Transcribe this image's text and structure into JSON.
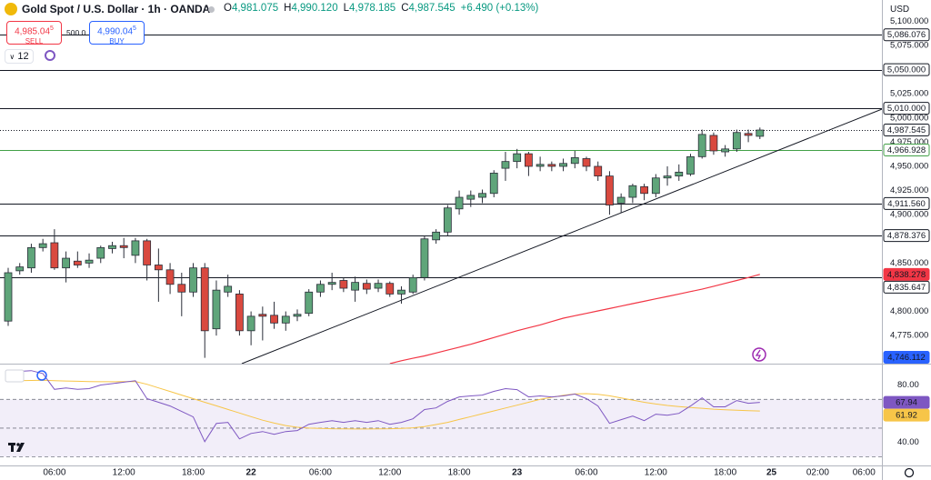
{
  "header": {
    "symbol": "Gold Spot / U.S. Dollar · 1h · OANDA",
    "ohlc": [
      {
        "letter": "O",
        "value": "4,981.075"
      },
      {
        "letter": "H",
        "value": "4,990.120"
      },
      {
        "letter": "L",
        "value": "4,978.185"
      },
      {
        "letter": "C",
        "value": "4,987.545"
      }
    ],
    "change": "+6.490 (+0.13%)",
    "sell": {
      "price": "4,985.04",
      "sup": "5",
      "label": "SELL"
    },
    "spread": "500.0",
    "buy": {
      "price": "4,990.04",
      "sup": "5",
      "label": "BUY"
    },
    "interval": "12",
    "currency": "USD"
  },
  "chart_data": [
    {
      "type": "candlestick",
      "categories": [
        null,
        null,
        null,
        null,
        "06:00",
        null,
        null,
        null,
        null,
        null,
        "12:00",
        null,
        null,
        null,
        null,
        null,
        "18:00",
        null,
        null,
        null,
        null,
        "22",
        null,
        null,
        null,
        null,
        null,
        "06:00",
        null,
        null,
        null,
        null,
        null,
        "12:00",
        null,
        null,
        null,
        null,
        null,
        "18:00",
        null,
        null,
        null,
        null,
        "23",
        null,
        null,
        null,
        null,
        null,
        "06:00",
        null,
        null,
        null,
        null,
        null,
        "12:00",
        null,
        null,
        null,
        null,
        null,
        "18:00",
        null,
        null,
        null,
        "25",
        null,
        null,
        null,
        "02:00",
        null,
        null,
        null,
        "06:00",
        null
      ],
      "open": [
        4790,
        4842,
        4845,
        4866,
        4871,
        4845,
        4852,
        4850,
        4855,
        4865,
        4868,
        4858,
        4873,
        4848,
        4843,
        4828,
        4820,
        4845,
        4782,
        4820,
        4818,
        4780,
        4797,
        4796,
        4788,
        4795,
        4798,
        4820,
        4828,
        4832,
        4822,
        4829,
        4824,
        4829,
        4818,
        4820,
        4835,
        4874,
        4882,
        4906,
        4916,
        4918,
        4922,
        4948,
        4955,
        4963,
        4950,
        4952,
        4950,
        4953,
        4958,
        4950,
        4940,
        4912,
        4918,
        4929,
        4922,
        4938,
        4940,
        4942,
        4960,
        4982,
        4965,
        4968,
        4984,
        4981.075,
        null,
        null,
        null,
        null,
        null,
        null,
        null,
        null,
        null,
        null
      ],
      "high": [
        4845,
        4850,
        4870,
        4875,
        4885,
        4862,
        4862,
        4860,
        4868,
        4872,
        4876,
        4876,
        4875,
        4865,
        4850,
        4840,
        4850,
        4850,
        4832,
        4838,
        4822,
        4800,
        4805,
        4810,
        4800,
        4802,
        4823,
        4832,
        4840,
        4835,
        4836,
        4833,
        4833,
        4831,
        4826,
        4838,
        4878,
        4885,
        4910,
        4925,
        4925,
        4926,
        4946,
        4965,
        4968,
        4965,
        4960,
        4955,
        4958,
        4966,
        4960,
        4955,
        4945,
        4922,
        4932,
        4932,
        4942,
        4950,
        4952,
        4963,
        4988,
        4985,
        4972,
        4988,
        4988,
        4990.12,
        null,
        null,
        null,
        null,
        null,
        null,
        null,
        null,
        null,
        null
      ],
      "low": [
        4785,
        4838,
        4840,
        4862,
        4843,
        4830,
        4845,
        4845,
        4850,
        4860,
        4855,
        4850,
        4832,
        4810,
        4818,
        4795,
        4815,
        4752,
        4775,
        4815,
        4775,
        4765,
        4770,
        4782,
        4780,
        4790,
        4795,
        4815,
        4822,
        4820,
        4810,
        4818,
        4820,
        4815,
        4808,
        4818,
        4832,
        4870,
        4878,
        4900,
        4908,
        4912,
        4918,
        4935,
        4948,
        4940,
        4945,
        4945,
        4945,
        4948,
        4945,
        4935,
        4900,
        4902,
        4912,
        4915,
        4918,
        4930,
        4935,
        4940,
        4958,
        4962,
        4960,
        4965,
        4975,
        4978.185,
        null,
        null,
        null,
        null,
        null,
        null,
        null,
        null,
        null,
        null
      ],
      "close": [
        4840,
        4846,
        4866,
        4870,
        4845,
        4855,
        4848,
        4853,
        4866,
        4868,
        4866,
        4873,
        4848,
        4843,
        4828,
        4820,
        4845,
        4780,
        4822,
        4826,
        4780,
        4795,
        4795,
        4788,
        4795,
        4797,
        4820,
        4828,
        4830,
        4824,
        4830,
        4823,
        4829,
        4818,
        4822,
        4835,
        4875,
        4882,
        4907,
        4918,
        4920,
        4922,
        4943,
        4955,
        4963,
        4950,
        4952,
        4950,
        4953,
        4959,
        4950,
        4940,
        4910,
        4918,
        4930,
        4922,
        4938,
        4940,
        4944,
        4960,
        4983,
        4966,
        4968,
        4985,
        4982,
        4987.545,
        null,
        null,
        null,
        null,
        null,
        null,
        null,
        null,
        null,
        null
      ],
      "up_color": "#5fa57a",
      "down_color": "#d9493f",
      "ylim": [
        4746,
        5122
      ],
      "yticks": [
        {
          "value": 5100,
          "label": "5,100.000"
        },
        {
          "value": 5075,
          "label": "5,075.000"
        },
        {
          "value": 5025,
          "label": "5,025.000"
        },
        {
          "value": 5000,
          "label": "5,000.000"
        },
        {
          "value": 4975,
          "label": "4,975.000"
        },
        {
          "value": 4950,
          "label": "4,950.000"
        },
        {
          "value": 4925,
          "label": "4,925.000"
        },
        {
          "value": 4900,
          "label": "4,900.000"
        },
        {
          "value": 4850,
          "label": "4,850.000"
        },
        {
          "value": 4800,
          "label": "4,800.000"
        },
        {
          "value": 4775,
          "label": "4,775.000"
        }
      ],
      "sma": {
        "color": "#f23645",
        "values": [
          null,
          null,
          null,
          null,
          null,
          null,
          null,
          null,
          null,
          null,
          null,
          null,
          null,
          null,
          null,
          null,
          null,
          null,
          null,
          null,
          null,
          null,
          null,
          null,
          null,
          null,
          null,
          null,
          null,
          null,
          null,
          null,
          null,
          4746,
          4749,
          4751.5,
          4754,
          4757,
          4760,
          4763,
          4766,
          4769.5,
          4773,
          4776.5,
          4780,
          4783,
          4786,
          4789.5,
          4793,
          4795.5,
          4798,
          4800.5,
          4803,
          4805.5,
          4808,
          4810.5,
          4813,
          4815.5,
          4818,
          4820.5,
          4823,
          4826,
          4829,
          4832,
          4835,
          4838.278,
          null,
          null,
          null,
          null,
          null,
          null,
          null,
          null,
          null,
          null
        ]
      },
      "trendline": {
        "color": "#131722",
        "x": [
          20.2,
          75.6
        ],
        "values": [
          4746,
          5009.4
        ]
      },
      "levels": [
        {
          "value": 5086.076,
          "label": "5,086.076",
          "color": "#131722",
          "line": "solid",
          "filled": false
        },
        {
          "value": 5050,
          "label": "5,050.000",
          "color": "#131722",
          "line": "solid",
          "filled": false
        },
        {
          "value": 5010,
          "label": "5,010.000",
          "color": "#131722",
          "line": "solid",
          "filled": false
        },
        {
          "value": 4987.545,
          "label": "4,987.545",
          "color": "#131722",
          "line": "dotted",
          "filled": false
        },
        {
          "value": 4966.928,
          "label": "4,966.928",
          "color": "#43a047",
          "line": "solid",
          "filled": false
        },
        {
          "value": 4911.56,
          "label": "4,911.560",
          "color": "#131722",
          "line": "solid",
          "filled": false
        },
        {
          "value": 4878.376,
          "label": "4,878.376",
          "color": "#131722",
          "line": "solid",
          "filled": false
        },
        {
          "value": 4838.278,
          "label": "4,838.278",
          "color": "#f23645",
          "line": "none",
          "filled": true
        },
        {
          "value": 4835.647,
          "label": "4,835.647",
          "color": "#131722",
          "line": "solid",
          "filled": false
        },
        {
          "value": 4746.112,
          "label": "4,746.112",
          "color": "#2962ff",
          "line": "none",
          "filled": true
        }
      ]
    },
    {
      "type": "line",
      "ylim": [
        24,
        93
      ],
      "yticks": [
        {
          "value": 80,
          "label": "80.00"
        },
        {
          "value": 40,
          "label": "40.00"
        }
      ],
      "band": [
        30,
        70
      ],
      "band_color": "#7e57c2",
      "hlines": [
        70,
        50,
        30
      ],
      "series": [
        {
          "color": "#7e57c2",
          "label_text_color": "#ffffff",
          "values": [
            88.3,
            89.5,
            90,
            88,
            77,
            78,
            77,
            77.5,
            80,
            81,
            82,
            83,
            70.5,
            68,
            65.4,
            61.6,
            57.8,
            40.6,
            53.3,
            54,
            42.5,
            46.3,
            47.6,
            45.7,
            47.6,
            48.3,
            52.7,
            54,
            55.2,
            54,
            55.2,
            54,
            55.2,
            52.7,
            54,
            56.5,
            62.9,
            64.1,
            68.6,
            71.7,
            72.4,
            73,
            75.6,
            77.5,
            76.8,
            71.7,
            72.4,
            71.7,
            72.4,
            73.7,
            70.5,
            65.4,
            53.3,
            55.9,
            58.4,
            55.2,
            59.7,
            59,
            60.3,
            65.4,
            71.1,
            64.8,
            64.8,
            69.2,
            67.3,
            67.94,
            null,
            null,
            null,
            null,
            null,
            null,
            null,
            null,
            null,
            null
          ]
        },
        {
          "color": "#f7c548",
          "label_text_color": "#131722",
          "values": [
            83,
            83,
            83.2,
            83.3,
            83,
            82.8,
            82.6,
            82.4,
            82.3,
            82.3,
            82.4,
            82.5,
            80.5,
            78,
            75.5,
            73,
            70.5,
            68,
            65.5,
            63,
            60.5,
            58,
            55.5,
            53.5,
            51.8,
            50.6,
            50,
            49.8,
            49.6,
            49.5,
            49.4,
            49.4,
            49.5,
            49.6,
            49.8,
            50.2,
            51,
            52.5,
            54,
            56,
            58,
            60,
            62,
            64,
            66,
            68,
            70,
            71.5,
            72.8,
            73.8,
            74,
            73.5,
            72.5,
            71,
            69.5,
            68,
            66.8,
            65.8,
            65,
            64.3,
            63.8,
            63.2,
            62.8,
            62.4,
            62.1,
            61.92,
            null,
            null,
            null,
            null,
            null,
            null,
            null,
            null,
            null,
            null
          ]
        }
      ]
    }
  ]
}
